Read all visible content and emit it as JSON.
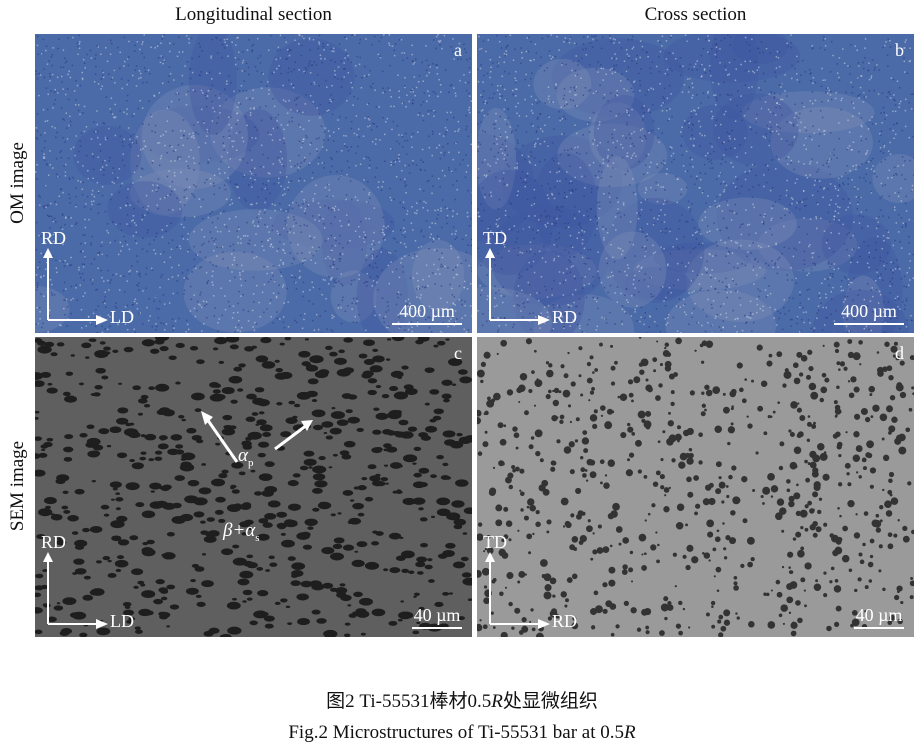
{
  "columns": [
    "Longitudinal section",
    "Cross section"
  ],
  "rows": [
    "OM image",
    "SEM image"
  ],
  "panels": [
    {
      "id": "a",
      "axis_up": "RD",
      "axis_right": "LD",
      "scale": "400 µm",
      "type": "OM"
    },
    {
      "id": "b",
      "axis_up": "TD",
      "axis_right": "RD",
      "scale": "400 µm",
      "type": "OM"
    },
    {
      "id": "c",
      "axis_up": "RD",
      "axis_right": "LD",
      "scale": "40 µm",
      "type": "SEM",
      "annotations": {
        "alpha_p": "α",
        "alpha_p_sub": "p",
        "beta_alpha_s": "β+α",
        "beta_alpha_s_sub": "s"
      }
    },
    {
      "id": "d",
      "axis_up": "TD",
      "axis_right": "RD",
      "scale": "40 µm",
      "type": "SEM"
    }
  ],
  "caption": {
    "zh_prefix": "图2  Ti-55531棒材0.5",
    "zh_italic": "R",
    "zh_suffix": "处显微组织",
    "en_prefix": "Fig.2  Microstructures of Ti-55531 bar at 0.5",
    "en_italic": "R"
  },
  "colors": {
    "om": "#4a6aa8",
    "sem_c": "#5f5f5f",
    "sem_d": "#9a9a9a"
  }
}
